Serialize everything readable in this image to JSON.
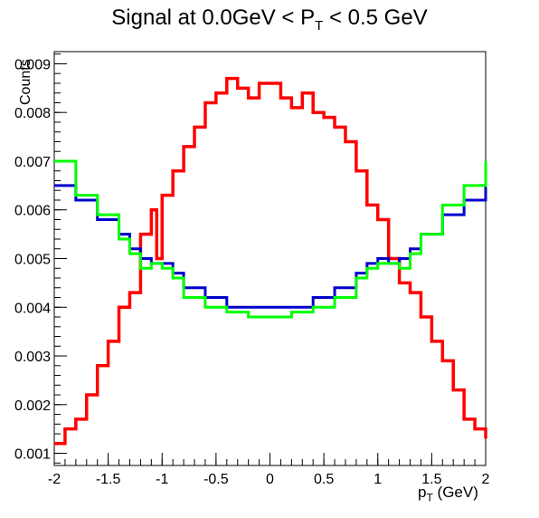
{
  "chart_data": {
    "type": "line",
    "title_main": "Signal at 0.0GeV < P",
    "title_sub": "T",
    "title_tail": " < 0.5 GeV",
    "xlabel_main": "p",
    "xlabel_sub": "T",
    "xlabel_tail": " (GeV)",
    "ylabel": "Counts",
    "xlim": [
      -2,
      2
    ],
    "ylim": [
      0.00075,
      0.00925
    ],
    "x_ticks": [
      "-2",
      "-1.5",
      "-1",
      "-0.5",
      "0",
      "0.5",
      "1",
      "1.5",
      "2"
    ],
    "y_ticks": [
      "0.001",
      "0.002",
      "0.003",
      "0.004",
      "0.005",
      "0.006",
      "0.007",
      "0.008",
      "0.009"
    ],
    "grid": false,
    "colors": {
      "red": "#ff0000",
      "blue": "#0000cc",
      "green": "#00ff00"
    },
    "series": [
      {
        "color": "#ff0000",
        "x": [
          -2.0,
          -1.9,
          -1.8,
          -1.7,
          -1.6,
          -1.5,
          -1.4,
          -1.3,
          -1.2,
          -1.1,
          -1.05,
          -1.0,
          -0.9,
          -0.8,
          -0.7,
          -0.6,
          -0.5,
          -0.4,
          -0.3,
          -0.2,
          -0.1,
          0.0,
          0.1,
          0.2,
          0.3,
          0.4,
          0.5,
          0.6,
          0.7,
          0.8,
          0.9,
          1.0,
          1.1,
          1.2,
          1.3,
          1.4,
          1.5,
          1.6,
          1.7,
          1.8,
          1.9,
          2.0
        ],
        "y": [
          0.0012,
          0.0015,
          0.0017,
          0.0022,
          0.0028,
          0.0033,
          0.004,
          0.0043,
          0.0055,
          0.006,
          0.005,
          0.0063,
          0.0068,
          0.0073,
          0.0077,
          0.0082,
          0.0084,
          0.0087,
          0.0085,
          0.0083,
          0.0086,
          0.0086,
          0.0083,
          0.0081,
          0.0084,
          0.008,
          0.0079,
          0.0077,
          0.0074,
          0.0068,
          0.0061,
          0.0058,
          0.005,
          0.0045,
          0.0043,
          0.0038,
          0.0033,
          0.0029,
          0.0023,
          0.0017,
          0.0015,
          0.0013
        ]
      },
      {
        "color": "#0000cc",
        "x": [
          -2.0,
          -1.8,
          -1.6,
          -1.4,
          -1.3,
          -1.2,
          -1.1,
          -1.0,
          -0.9,
          -0.8,
          -0.6,
          -0.4,
          -0.2,
          0.0,
          0.2,
          0.4,
          0.6,
          0.8,
          0.9,
          1.0,
          1.1,
          1.2,
          1.3,
          1.4,
          1.6,
          1.8,
          2.0
        ],
        "y": [
          0.0065,
          0.0062,
          0.0058,
          0.0055,
          0.0052,
          0.005,
          0.0049,
          0.0049,
          0.0047,
          0.0044,
          0.0042,
          0.004,
          0.004,
          0.004,
          0.004,
          0.0042,
          0.0044,
          0.0047,
          0.0049,
          0.005,
          0.0049,
          0.005,
          0.0052,
          0.0055,
          0.0059,
          0.0062,
          0.00655
        ]
      },
      {
        "color": "#00ff00",
        "x": [
          -2.0,
          -1.8,
          -1.6,
          -1.4,
          -1.3,
          -1.2,
          -1.1,
          -1.0,
          -0.9,
          -0.8,
          -0.6,
          -0.4,
          -0.2,
          0.0,
          0.2,
          0.4,
          0.6,
          0.8,
          0.9,
          1.0,
          1.1,
          1.2,
          1.3,
          1.4,
          1.6,
          1.8,
          2.0
        ],
        "y": [
          0.007,
          0.0063,
          0.0059,
          0.0054,
          0.0051,
          0.0048,
          0.0049,
          0.0048,
          0.0046,
          0.0042,
          0.004,
          0.0039,
          0.0038,
          0.0038,
          0.0039,
          0.004,
          0.0042,
          0.0046,
          0.0048,
          0.0049,
          0.0049,
          0.0048,
          0.0051,
          0.0055,
          0.0061,
          0.0065,
          0.007
        ]
      }
    ]
  }
}
